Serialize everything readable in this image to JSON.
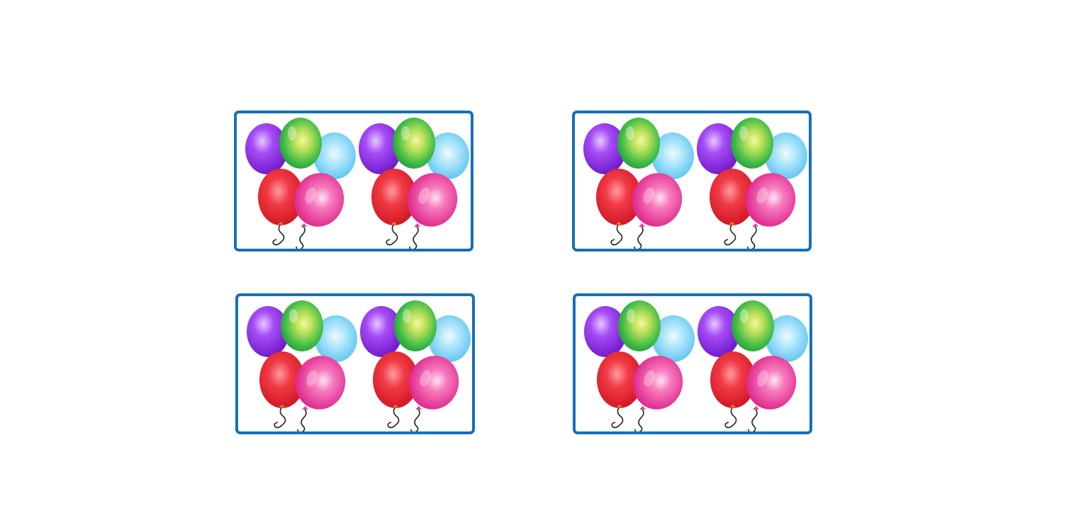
{
  "page": {
    "background": "#ffffff",
    "accent": "#1670b6"
  },
  "cards": [
    {
      "id": "card-1",
      "icon": "balloon-bunch-icon",
      "bunches": 2
    },
    {
      "id": "card-2",
      "icon": "balloon-bunch-icon",
      "bunches": 2
    },
    {
      "id": "card-3",
      "icon": "balloon-bunch-icon",
      "bunches": 2
    },
    {
      "id": "card-4",
      "icon": "balloon-bunch-icon",
      "bunches": 2
    }
  ],
  "balloon_colors": {
    "purple": "#8a2be2",
    "green": "#2fb34a",
    "blue": "#5cc8f2",
    "red": "#e8232f",
    "pink": "#ea1f8f"
  }
}
